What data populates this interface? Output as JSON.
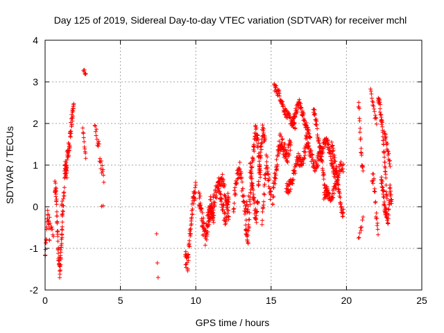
{
  "chart_data": {
    "type": "scatter",
    "title": "Day 125 of 2019, Sidereal Day-to-day VTEC variation (SDTVAR) for receiver mchl",
    "xlabel": "GPS time / hours",
    "ylabel": "SDTVAR / TECUs",
    "xlim": [
      0,
      25
    ],
    "ylim": [
      -2,
      4
    ],
    "xticks": [
      0,
      5,
      10,
      15,
      20,
      25
    ],
    "yticks": [
      -2,
      -1,
      0,
      1,
      2,
      3,
      4
    ],
    "xtick_labels": [
      "0",
      "5",
      "10",
      "15",
      "20",
      "25"
    ],
    "ytick_labels": [
      "-2",
      "-1",
      "0",
      "1",
      "2",
      "3",
      "4"
    ],
    "grid": true,
    "marker": "+",
    "color": "#ff0000",
    "segments": [
      {
        "x0": 0.0,
        "x1": 0.3,
        "y": [
          -1.2,
          -0.9,
          -0.5,
          -0.1,
          -0.4,
          -0.8
        ],
        "n": 22,
        "jitter": 0.12
      },
      {
        "x0": 0.3,
        "x1": 0.55,
        "y": [
          -0.3,
          -0.55,
          -0.7
        ],
        "n": 8,
        "jitter": 0.1
      },
      {
        "x0": 0.65,
        "x1": 1.15,
        "y": [
          0.5,
          0.3,
          -0.5,
          -1.2,
          -1.6,
          -1.0,
          -0.5
        ],
        "n": 70,
        "jitter": 0.18
      },
      {
        "x0": 1.1,
        "x1": 1.45,
        "y": [
          0.0,
          -0.1,
          0.5,
          1.0,
          0.7
        ],
        "n": 30,
        "jitter": 0.2
      },
      {
        "x0": 1.3,
        "x1": 1.9,
        "y": [
          0.8,
          1.1,
          1.5,
          2.0,
          2.4
        ],
        "n": 60,
        "jitter": 0.2
      },
      {
        "x0": 2.55,
        "x1": 2.7,
        "y": [
          3.3,
          3.2
        ],
        "n": 6,
        "jitter": 0.05
      },
      {
        "x0": 2.5,
        "x1": 2.7,
        "y": [
          1.9,
          1.5,
          1.2
        ],
        "n": 10,
        "jitter": 0.1
      },
      {
        "x0": 3.3,
        "x1": 3.9,
        "y": [
          1.8,
          1.7,
          1.3,
          0.9,
          0.6
        ],
        "n": 22,
        "jitter": 0.18
      },
      {
        "x0": 3.75,
        "x1": 3.85,
        "y": [
          0.0
        ],
        "n": 2,
        "jitter": 0.03
      },
      {
        "x0": 7.4,
        "x1": 7.5,
        "y": [
          -0.65,
          -1.35,
          -1.7
        ],
        "n": 3,
        "jitter": 0.0
      },
      {
        "x0": 9.3,
        "x1": 10.0,
        "y": [
          -1.2,
          -1.4,
          -0.5,
          0.2,
          0.4
        ],
        "n": 60,
        "jitter": 0.2
      },
      {
        "x0": 10.2,
        "x1": 11.2,
        "y": [
          0.2,
          -0.2,
          -0.8,
          -0.4,
          0.1,
          -0.2
        ],
        "n": 80,
        "jitter": 0.25
      },
      {
        "x0": 10.8,
        "x1": 12.2,
        "y": [
          -0.3,
          -0.1,
          0.2,
          0.6,
          0.0,
          -0.3,
          0.3
        ],
        "n": 90,
        "jitter": 0.2
      },
      {
        "x0": 11.5,
        "x1": 12.2,
        "y": [
          0.4,
          0.7,
          0.3,
          -0.2
        ],
        "n": 40,
        "jitter": 0.15
      },
      {
        "x0": 12.5,
        "x1": 13.5,
        "y": [
          0.0,
          0.6,
          1.0,
          0.4,
          -0.2,
          0.1
        ],
        "n": 60,
        "jitter": 0.2
      },
      {
        "x0": 13.3,
        "x1": 14.3,
        "y": [
          -0.5,
          -0.8,
          0.3,
          1.2,
          1.8,
          1.5,
          0.7
        ],
        "n": 80,
        "jitter": 0.2
      },
      {
        "x0": 13.6,
        "x1": 14.6,
        "y": [
          1.0,
          0.5,
          0.0,
          -0.3,
          0.5,
          1.4,
          1.9,
          1.6
        ],
        "n": 80,
        "jitter": 0.2
      },
      {
        "x0": 14.4,
        "x1": 15.0,
        "y": [
          -0.3,
          0.4,
          1.2,
          0.6,
          0.2
        ],
        "n": 40,
        "jitter": 0.2
      },
      {
        "x0": 15.1,
        "x1": 16.3,
        "y": [
          0.2,
          1.0,
          1.6,
          1.4,
          1.2,
          1.5
        ],
        "n": 90,
        "jitter": 0.2
      },
      {
        "x0": 15.2,
        "x1": 16.6,
        "y": [
          2.9,
          2.7,
          2.3,
          2.1,
          1.9
        ],
        "n": 70,
        "jitter": 0.1
      },
      {
        "x0": 16.0,
        "x1": 17.3,
        "y": [
          0.4,
          0.5,
          0.8,
          1.2,
          1.0,
          1.4
        ],
        "n": 80,
        "jitter": 0.15
      },
      {
        "x0": 16.4,
        "x1": 17.6,
        "y": [
          2.0,
          2.3,
          2.5,
          2.2,
          1.9,
          1.7
        ],
        "n": 70,
        "jitter": 0.1
      },
      {
        "x0": 17.3,
        "x1": 18.3,
        "y": [
          1.6,
          1.4,
          1.2,
          0.9,
          1.1,
          1.3
        ],
        "n": 60,
        "jitter": 0.15
      },
      {
        "x0": 17.8,
        "x1": 18.8,
        "y": [
          2.4,
          2.0,
          1.5,
          1.0,
          0.4,
          0.3
        ],
        "n": 60,
        "jitter": 0.12
      },
      {
        "x0": 18.3,
        "x1": 19.3,
        "y": [
          1.2,
          1.5,
          1.6,
          1.3,
          1.0,
          0.5
        ],
        "n": 60,
        "jitter": 0.12
      },
      {
        "x0": 18.5,
        "x1": 19.2,
        "y": [
          0.3,
          0.4,
          0.2,
          0.4
        ],
        "n": 35,
        "jitter": 0.12
      },
      {
        "x0": 19.0,
        "x1": 19.8,
        "y": [
          1.5,
          1.2,
          0.8,
          0.5,
          0.0,
          -0.2
        ],
        "n": 50,
        "jitter": 0.15
      },
      {
        "x0": 19.3,
        "x1": 19.8,
        "y": [
          0.5,
          0.8,
          1.0,
          0.9
        ],
        "n": 25,
        "jitter": 0.12
      },
      {
        "x0": 20.8,
        "x1": 21.1,
        "y": [
          2.5,
          2.1,
          1.5,
          1.0,
          0.8
        ],
        "n": 20,
        "jitter": 0.15
      },
      {
        "x0": 20.8,
        "x1": 21.1,
        "y": [
          -0.8,
          -0.5,
          -0.3
        ],
        "n": 8,
        "jitter": 0.1
      },
      {
        "x0": 21.6,
        "x1": 22.0,
        "y": [
          2.8,
          2.5,
          2.2,
          2.0
        ],
        "n": 15,
        "jitter": 0.12
      },
      {
        "x0": 21.7,
        "x1": 22.1,
        "y": [
          0.7,
          0.6,
          -0.2,
          -0.6
        ],
        "n": 20,
        "jitter": 0.15
      },
      {
        "x0": 22.1,
        "x1": 22.7,
        "y": [
          2.7,
          2.4,
          2.0,
          1.5,
          0.8,
          0.2
        ],
        "n": 50,
        "jitter": 0.15
      },
      {
        "x0": 22.3,
        "x1": 23.0,
        "y": [
          0.7,
          0.4,
          0.0,
          -0.2,
          -0.3,
          0.4,
          0.1
        ],
        "n": 60,
        "jitter": 0.15
      },
      {
        "x0": 22.5,
        "x1": 22.9,
        "y": [
          1.9,
          1.6,
          1.3,
          1.0
        ],
        "n": 20,
        "jitter": 0.12
      }
    ]
  }
}
